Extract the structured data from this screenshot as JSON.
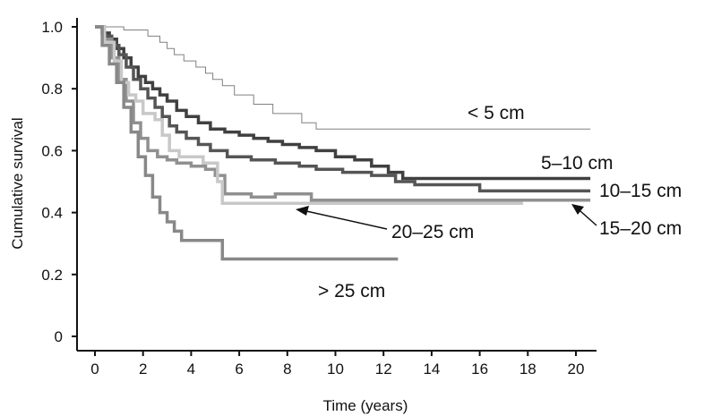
{
  "chart_data": {
    "type": "line",
    "title": "",
    "xlabel": "Time (years)",
    "ylabel": "Cumulative survival",
    "xlim": [
      -0.5,
      20.6
    ],
    "ylim": [
      0,
      1.0
    ],
    "xticks": [
      "0",
      "2",
      "4",
      "6",
      "8",
      "10",
      "12",
      "14",
      "16",
      "18",
      "20"
    ],
    "yticks": [
      "0",
      "0.2",
      "0.4",
      "0.6",
      "0.8",
      "1.0"
    ],
    "grid": false,
    "legend": "none",
    "series": [
      {
        "name": "< 5 cm",
        "color": "#808080",
        "x": [
          0,
          1.2,
          2.2,
          2.7,
          3.0,
          3.3,
          3.7,
          4.2,
          4.6,
          4.9,
          5.3,
          5.8,
          6.6,
          7.4,
          8.6,
          9.2,
          20.6
        ],
        "y": [
          1.0,
          0.99,
          0.97,
          0.95,
          0.93,
          0.91,
          0.89,
          0.87,
          0.85,
          0.83,
          0.81,
          0.78,
          0.75,
          0.72,
          0.69,
          0.67,
          0.67
        ]
      },
      {
        "name": "5–10 cm",
        "color": "#404040",
        "x": [
          0,
          0.3,
          0.6,
          0.9,
          1.2,
          1.5,
          1.8,
          2.1,
          2.4,
          2.7,
          3.0,
          3.4,
          3.8,
          4.3,
          4.8,
          5.4,
          6.0,
          6.6,
          7.2,
          7.8,
          8.5,
          9.2,
          10.0,
          10.8,
          11.5,
          12.2,
          12.8,
          20.6
        ],
        "y": [
          1.0,
          0.98,
          0.96,
          0.93,
          0.9,
          0.87,
          0.84,
          0.82,
          0.8,
          0.78,
          0.76,
          0.73,
          0.71,
          0.69,
          0.67,
          0.66,
          0.65,
          0.64,
          0.63,
          0.62,
          0.61,
          0.6,
          0.58,
          0.57,
          0.55,
          0.53,
          0.51,
          0.51
        ]
      },
      {
        "name": "10–15 cm",
        "color": "#555555",
        "x": [
          0,
          0.4,
          0.7,
          1.0,
          1.3,
          1.6,
          1.9,
          2.2,
          2.5,
          2.8,
          3.1,
          3.4,
          3.8,
          4.3,
          4.8,
          5.5,
          6.5,
          7.5,
          8.5,
          9.2,
          10.3,
          11.5,
          12.5,
          13.3,
          16.0,
          20.6
        ],
        "y": [
          1.0,
          0.97,
          0.94,
          0.91,
          0.87,
          0.83,
          0.8,
          0.77,
          0.74,
          0.71,
          0.68,
          0.66,
          0.64,
          0.62,
          0.6,
          0.58,
          0.57,
          0.56,
          0.55,
          0.54,
          0.53,
          0.52,
          0.5,
          0.49,
          0.47,
          0.47
        ]
      },
      {
        "name": "15–20 cm",
        "color": "#909090",
        "x": [
          0,
          0.4,
          0.7,
          1.0,
          1.3,
          1.6,
          1.9,
          2.2,
          2.6,
          3.0,
          3.4,
          4.0,
          4.6,
          5.0,
          5.4,
          6.5,
          7.5,
          9.0,
          20.6
        ],
        "y": [
          1.0,
          0.96,
          0.9,
          0.83,
          0.76,
          0.69,
          0.64,
          0.6,
          0.58,
          0.57,
          0.56,
          0.55,
          0.54,
          0.52,
          0.46,
          0.45,
          0.46,
          0.44,
          0.44
        ]
      },
      {
        "name": "20–25 cm",
        "color": "#c8c8c8",
        "x": [
          0,
          0.4,
          0.8,
          1.1,
          1.4,
          1.7,
          2.0,
          2.5,
          2.8,
          3.1,
          3.5,
          4.0,
          4.5,
          5.1,
          5.3,
          17.8
        ],
        "y": [
          1.0,
          0.95,
          0.89,
          0.82,
          0.78,
          0.76,
          0.72,
          0.7,
          0.65,
          0.6,
          0.58,
          0.58,
          0.56,
          0.5,
          0.43,
          0.43
        ]
      },
      {
        "name": "> 25 cm",
        "color": "#888888",
        "x": [
          0,
          0.3,
          0.6,
          0.9,
          1.2,
          1.5,
          1.8,
          2.1,
          2.4,
          2.7,
          3.0,
          3.3,
          3.6,
          4.0,
          5.3,
          12.6
        ],
        "y": [
          1.0,
          0.94,
          0.88,
          0.82,
          0.74,
          0.66,
          0.58,
          0.52,
          0.45,
          0.4,
          0.37,
          0.34,
          0.31,
          0.31,
          0.25,
          0.25
        ]
      }
    ],
    "annotations": [
      {
        "text": "< 5 cm",
        "series": 0
      },
      {
        "text": "5–10 cm",
        "series": 1
      },
      {
        "text": "10–15 cm",
        "series": 2
      },
      {
        "text": "15–20 cm",
        "series": 3
      },
      {
        "text": "20–25 cm",
        "series": 4
      },
      {
        "text": "> 25 cm",
        "series": 5
      }
    ]
  }
}
